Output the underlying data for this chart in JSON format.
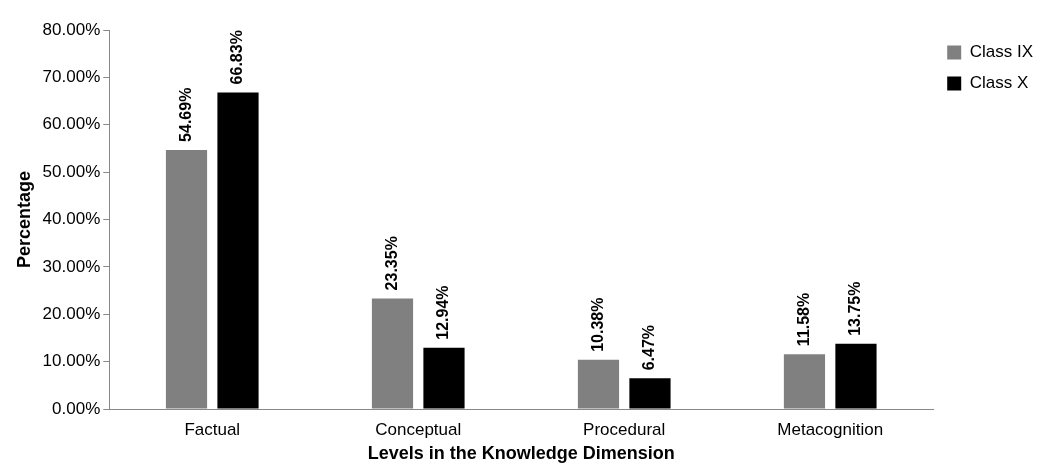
{
  "chart_data": {
    "type": "bar",
    "xlabel": "Levels in the Knowledge Dimension",
    "ylabel": "Percentage",
    "categories": [
      "Factual",
      "Conceptual",
      "Procedural",
      "Metacognition"
    ],
    "series": [
      {
        "name": "Class IX",
        "color": "#808080",
        "values": [
          54.69,
          23.35,
          10.38,
          11.58
        ],
        "value_labels": [
          "54.69%",
          "23.35%",
          "10.38%",
          "11.58%"
        ]
      },
      {
        "name": "Class X",
        "color": "#000000",
        "values": [
          66.83,
          12.94,
          6.47,
          13.75
        ],
        "value_labels": [
          "66.83%",
          "12.94%",
          "6.47%",
          "13.75%"
        ]
      }
    ],
    "ylim": [
      0,
      80
    ],
    "yticks": [
      {
        "value": 0,
        "label": "0.00%"
      },
      {
        "value": 10,
        "label": "10.00%"
      },
      {
        "value": 20,
        "label": "20.00%"
      },
      {
        "value": 30,
        "label": "30.00%"
      },
      {
        "value": 40,
        "label": "40.00%"
      },
      {
        "value": 50,
        "label": "50.00%"
      },
      {
        "value": 60,
        "label": "60.00%"
      },
      {
        "value": 70,
        "label": "70.00%"
      },
      {
        "value": 80,
        "label": "80.00%"
      }
    ],
    "grid": false,
    "legend": "top right"
  }
}
